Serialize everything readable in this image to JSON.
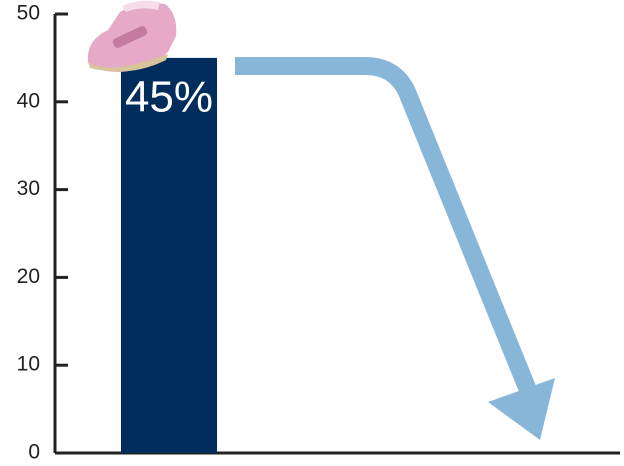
{
  "chart_data": {
    "type": "bar",
    "categories": [
      null
    ],
    "values": [
      45
    ],
    "value_labels": [
      "45%"
    ],
    "color": "#002d5c",
    "ylim": [
      0,
      50
    ],
    "yticks": [
      0,
      10,
      20,
      30,
      40,
      50
    ]
  }
}
